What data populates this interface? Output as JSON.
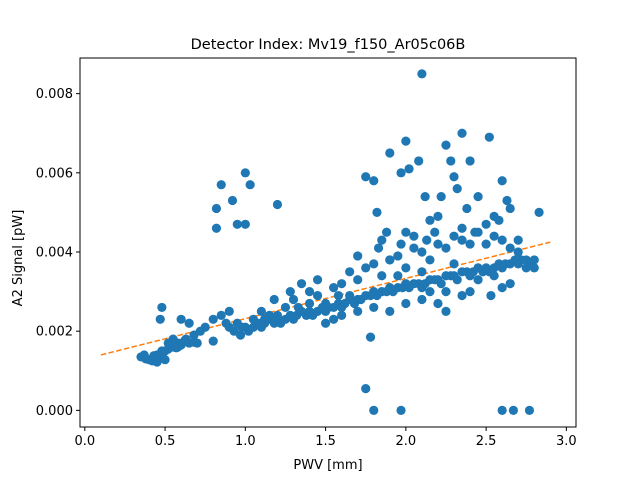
{
  "chart_data": {
    "type": "scatter",
    "title": "Detector Index: Mv19_f150_Ar05c06B",
    "xlabel": "PWV [mm]",
    "ylabel": "A2 Signal [pW]",
    "xlim": [
      -0.03,
      3.06
    ],
    "ylim": [
      -0.00042,
      0.0089
    ],
    "xticks": [
      0.0,
      0.5,
      1.0,
      1.5,
      2.0,
      2.5,
      3.0
    ],
    "xtick_labels": [
      "0.0",
      "0.5",
      "1.0",
      "1.5",
      "2.0",
      "2.5",
      "3.0"
    ],
    "yticks": [
      0.0,
      0.002,
      0.004,
      0.006,
      0.008
    ],
    "ytick_labels": [
      "0.000",
      "0.002",
      "0.004",
      "0.006",
      "0.008"
    ],
    "colors": {
      "points": "#1f77b4",
      "fit": "#ff7f0e",
      "axes": "#000000"
    },
    "series": [
      {
        "name": "measurements",
        "kind": "scatter",
        "points": [
          [
            0.35,
            0.00135
          ],
          [
            0.37,
            0.0014
          ],
          [
            0.38,
            0.0013
          ],
          [
            0.4,
            0.00128
          ],
          [
            0.42,
            0.00125
          ],
          [
            0.45,
            0.00122
          ],
          [
            0.43,
            0.00138
          ],
          [
            0.47,
            0.00135
          ],
          [
            0.5,
            0.00128
          ],
          [
            0.48,
            0.0015
          ],
          [
            0.52,
            0.00155
          ],
          [
            0.55,
            0.0016
          ],
          [
            0.53,
            0.00168
          ],
          [
            0.58,
            0.0017
          ],
          [
            0.6,
            0.00165
          ],
          [
            0.62,
            0.00175
          ],
          [
            0.65,
            0.0017
          ],
          [
            0.68,
            0.00172
          ],
          [
            0.7,
            0.0017
          ],
          [
            0.57,
            0.00158
          ],
          [
            0.48,
            0.0026
          ],
          [
            0.47,
            0.0023
          ],
          [
            0.6,
            0.0023
          ],
          [
            0.65,
            0.0022
          ],
          [
            0.8,
            0.0023
          ],
          [
            0.85,
            0.0024
          ],
          [
            0.9,
            0.0025
          ],
          [
            0.88,
            0.0022
          ],
          [
            0.93,
            0.002
          ],
          [
            0.97,
            0.0019
          ],
          [
            1.0,
            0.0021
          ],
          [
            1.02,
            0.002
          ],
          [
            1.05,
            0.0021
          ],
          [
            1.08,
            0.0022
          ],
          [
            1.1,
            0.0021
          ],
          [
            1.12,
            0.0022
          ],
          [
            0.8,
            0.00175
          ],
          [
            1.15,
            0.0023
          ],
          [
            1.18,
            0.0022
          ],
          [
            1.2,
            0.0023
          ],
          [
            1.22,
            0.0022
          ],
          [
            1.25,
            0.0023
          ],
          [
            1.28,
            0.0024
          ],
          [
            1.3,
            0.0023
          ],
          [
            1.32,
            0.0024
          ],
          [
            1.35,
            0.0025
          ],
          [
            1.38,
            0.0024
          ],
          [
            1.4,
            0.0025
          ],
          [
            1.42,
            0.0024
          ],
          [
            1.45,
            0.0025
          ],
          [
            1.48,
            0.0026
          ],
          [
            1.5,
            0.0025
          ],
          [
            1.52,
            0.0026
          ],
          [
            1.55,
            0.0026
          ],
          [
            1.58,
            0.0027
          ],
          [
            1.6,
            0.0026
          ],
          [
            1.62,
            0.0027
          ],
          [
            1.65,
            0.0028
          ],
          [
            1.68,
            0.0027
          ],
          [
            1.7,
            0.0028
          ],
          [
            1.72,
            0.0028
          ],
          [
            1.75,
            0.0029
          ],
          [
            1.78,
            0.0029
          ],
          [
            1.8,
            0.003
          ],
          [
            1.82,
            0.0029
          ],
          [
            1.85,
            0.003
          ],
          [
            1.88,
            0.003
          ],
          [
            1.9,
            0.0031
          ],
          [
            1.92,
            0.003
          ],
          [
            1.95,
            0.0031
          ],
          [
            1.98,
            0.0031
          ],
          [
            2.0,
            0.0032
          ],
          [
            2.02,
            0.0031
          ],
          [
            2.05,
            0.0032
          ],
          [
            2.08,
            0.0032
          ],
          [
            2.1,
            0.0031
          ],
          [
            2.12,
            0.0032
          ],
          [
            2.15,
            0.0033
          ],
          [
            2.18,
            0.0033
          ],
          [
            2.2,
            0.0033
          ],
          [
            2.22,
            0.0032
          ],
          [
            2.25,
            0.0034
          ],
          [
            2.28,
            0.0034
          ],
          [
            2.3,
            0.0034
          ],
          [
            2.32,
            0.0033
          ],
          [
            2.35,
            0.0035
          ],
          [
            2.38,
            0.0035
          ],
          [
            2.4,
            0.0034
          ],
          [
            2.42,
            0.0035
          ],
          [
            2.45,
            0.0036
          ],
          [
            2.48,
            0.0035
          ],
          [
            2.5,
            0.0036
          ],
          [
            2.52,
            0.0035
          ],
          [
            2.55,
            0.0036
          ],
          [
            2.58,
            0.0037
          ],
          [
            2.6,
            0.0036
          ],
          [
            2.62,
            0.0037
          ],
          [
            2.65,
            0.0037
          ],
          [
            2.68,
            0.0038
          ],
          [
            2.7,
            0.0037
          ],
          [
            2.72,
            0.0038
          ],
          [
            2.75,
            0.0038
          ],
          [
            2.78,
            0.0037
          ],
          [
            2.8,
            0.0038
          ],
          [
            1.3,
            0.0028
          ],
          [
            1.4,
            0.003
          ],
          [
            1.45,
            0.0033
          ],
          [
            1.55,
            0.0031
          ],
          [
            1.6,
            0.0032
          ],
          [
            1.65,
            0.0035
          ],
          [
            1.7,
            0.0033
          ],
          [
            1.75,
            0.0036
          ],
          [
            1.8,
            0.0037
          ],
          [
            1.85,
            0.0034
          ],
          [
            1.9,
            0.0038
          ],
          [
            1.95,
            0.0039
          ],
          [
            2.0,
            0.0036
          ],
          [
            2.05,
            0.0041
          ],
          [
            2.1,
            0.004
          ],
          [
            2.15,
            0.0038
          ],
          [
            2.2,
            0.0042
          ],
          [
            2.25,
            0.0041
          ],
          [
            2.3,
            0.0044
          ],
          [
            2.35,
            0.0043
          ],
          [
            2.4,
            0.0042
          ],
          [
            2.45,
            0.0045
          ],
          [
            2.5,
            0.0047
          ],
          [
            2.55,
            0.0044
          ],
          [
            2.6,
            0.0043
          ],
          [
            2.65,
            0.0041
          ],
          [
            2.7,
            0.004
          ],
          [
            1.5,
            0.0022
          ],
          [
            1.55,
            0.0023
          ],
          [
            1.6,
            0.0024
          ],
          [
            1.7,
            0.0025
          ],
          [
            1.8,
            0.0026
          ],
          [
            1.9,
            0.0025
          ],
          [
            2.0,
            0.0027
          ],
          [
            2.1,
            0.0028
          ],
          [
            2.2,
            0.0027
          ],
          [
            2.25,
            0.0025
          ],
          [
            2.35,
            0.0029
          ],
          [
            2.4,
            0.003
          ],
          [
            2.53,
            0.0029
          ],
          [
            2.6,
            0.0031
          ],
          [
            2.65,
            0.0032
          ],
          [
            1.18,
            0.0028
          ],
          [
            1.28,
            0.003
          ],
          [
            1.35,
            0.0032
          ],
          [
            1.45,
            0.0029
          ],
          [
            1.5,
            0.0027
          ],
          [
            1.25,
            0.0026
          ],
          [
            1.1,
            0.0025
          ],
          [
            1.05,
            0.0023
          ],
          [
            1.15,
            0.0024
          ],
          [
            0.95,
            0.0022
          ],
          [
            0.75,
            0.0021
          ],
          [
            0.72,
            0.002
          ],
          [
            0.55,
            0.0018
          ],
          [
            0.52,
            0.0017
          ],
          [
            0.85,
            0.0057
          ],
          [
            0.82,
            0.0051
          ],
          [
            0.82,
            0.0046
          ],
          [
            0.92,
            0.0053
          ],
          [
            0.95,
            0.0047
          ],
          [
            1.0,
            0.006
          ],
          [
            1.0,
            0.0047
          ],
          [
            1.03,
            0.0057
          ],
          [
            1.2,
            0.0052
          ],
          [
            1.75,
            0.0059
          ],
          [
            1.8,
            0.0058
          ],
          [
            1.82,
            0.005
          ],
          [
            1.9,
            0.0065
          ],
          [
            1.97,
            0.006
          ],
          [
            2.0,
            0.0068
          ],
          [
            2.02,
            0.0061
          ],
          [
            2.08,
            0.0063
          ],
          [
            2.1,
            0.0085
          ],
          [
            2.12,
            0.0054
          ],
          [
            2.15,
            0.0048
          ],
          [
            2.2,
            0.0049
          ],
          [
            2.22,
            0.0054
          ],
          [
            2.25,
            0.0067
          ],
          [
            2.28,
            0.0063
          ],
          [
            2.3,
            0.0059
          ],
          [
            2.32,
            0.0056
          ],
          [
            2.35,
            0.007
          ],
          [
            2.4,
            0.0063
          ],
          [
            2.38,
            0.0051
          ],
          [
            2.45,
            0.0054
          ],
          [
            2.52,
            0.0069
          ],
          [
            2.6,
            0.0058
          ],
          [
            2.63,
            0.0053
          ],
          [
            2.65,
            0.0051
          ],
          [
            2.55,
            0.0049
          ],
          [
            2.58,
            0.0048
          ],
          [
            2.83,
            0.005
          ],
          [
            2.7,
            0.0043
          ],
          [
            2.5,
            0.0042
          ],
          [
            2.43,
            0.0045
          ],
          [
            2.35,
            0.0046
          ],
          [
            2.18,
            0.0045
          ],
          [
            2.13,
            0.0043
          ],
          [
            2.05,
            0.0044
          ],
          [
            2.0,
            0.0045
          ],
          [
            1.97,
            0.0042
          ],
          [
            1.88,
            0.0045
          ],
          [
            1.85,
            0.0043
          ],
          [
            1.83,
            0.0041
          ],
          [
            1.7,
            0.0039
          ],
          [
            1.78,
            0.00185
          ],
          [
            1.75,
            0.00055
          ],
          [
            1.8,
            0.0
          ],
          [
            1.97,
            0.0
          ],
          [
            2.6,
            0.0
          ],
          [
            2.67,
            0.0
          ],
          [
            2.77,
            0.0
          ],
          [
            1.9,
            0.0038
          ],
          [
            2.25,
            0.003
          ],
          [
            2.55,
            0.0034
          ],
          [
            2.75,
            0.0036
          ],
          [
            2.3,
            0.0037
          ],
          [
            2.1,
            0.0035
          ],
          [
            1.95,
            0.0034
          ],
          [
            1.65,
            0.0029
          ],
          [
            1.58,
            0.0029
          ],
          [
            1.4,
            0.0027
          ],
          [
            1.33,
            0.0026
          ],
          [
            1.2,
            0.0024
          ],
          [
            1.12,
            0.0023
          ],
          [
            0.98,
            0.0021
          ],
          [
            0.9,
            0.0021
          ],
          [
            0.68,
            0.0019
          ],
          [
            0.63,
            0.0018
          ],
          [
            0.58,
            0.0016
          ],
          [
            0.5,
            0.0015
          ],
          [
            0.45,
            0.0014
          ],
          [
            2.8,
            0.0036
          ],
          [
            2.45,
            0.0033
          ],
          [
            2.15,
            0.003
          ]
        ]
      },
      {
        "name": "linear fit",
        "kind": "line",
        "style": "dashed",
        "points": [
          [
            0.1,
            0.0014
          ],
          [
            2.9,
            0.00425
          ]
        ]
      }
    ]
  }
}
